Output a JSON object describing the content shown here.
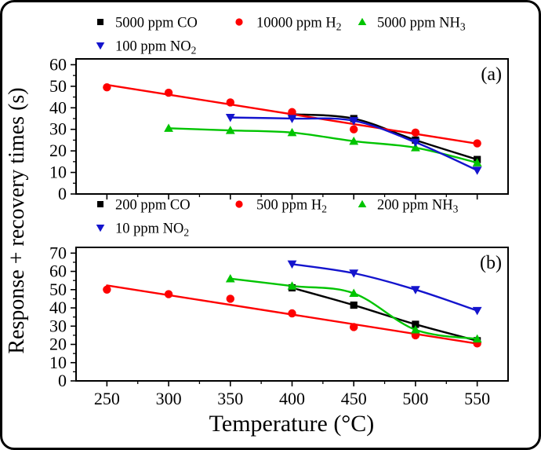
{
  "figure": {
    "xlabel": "Temperature (°C)",
    "ylabel": "Response + recovery times (s)",
    "background": "#ffffff",
    "border_color": "#000000"
  },
  "chart_data": [
    {
      "type": "line",
      "panel_label": "(a)",
      "xlabel": "Temperature (°C)",
      "ylabel": "Response + recovery times (s)",
      "xlim": [
        225,
        575
      ],
      "xticks": [
        250,
        300,
        350,
        400,
        450,
        500,
        550
      ],
      "x_minor_step": 25,
      "ylim": [
        0,
        60
      ],
      "yticks": [
        0,
        10,
        20,
        30,
        40,
        50,
        60
      ],
      "y_minor_step": 5,
      "grid": false,
      "legend_position": "top-left, two rows",
      "series": [
        {
          "name": "5000 ppm CO",
          "label": "5000 ppm CO",
          "label_sub": "",
          "marker": "square",
          "color": "#000000",
          "fit": "spline",
          "x": [
            400,
            450,
            500,
            550
          ],
          "y": [
            37,
            35,
            25,
            16
          ]
        },
        {
          "name": "10000 ppm H2",
          "label": "10000 ppm H",
          "label_sub": "2",
          "marker": "circle",
          "color": "#fe0000",
          "fit": "linear",
          "x": [
            250,
            300,
            350,
            400,
            450,
            500,
            550
          ],
          "y": [
            49.5,
            47,
            42.5,
            38,
            30,
            28.5,
            23.5
          ]
        },
        {
          "name": "5000 ppm NH3",
          "label": "5000 ppm NH",
          "label_sub": "3",
          "marker": "triangle-up",
          "color": "#00c400",
          "fit": "spline",
          "x": [
            300,
            350,
            400,
            450,
            500,
            550
          ],
          "y": [
            30.5,
            29.5,
            28.5,
            24.5,
            21.5,
            14.5
          ]
        },
        {
          "name": "100 ppm NO2",
          "label": "100 ppm NO",
          "label_sub": "2",
          "marker": "triangle-down",
          "color": "#1414cd",
          "fit": "spline",
          "x": [
            350,
            400,
            450,
            500,
            550
          ],
          "y": [
            35.5,
            35,
            34,
            24,
            11
          ]
        }
      ]
    },
    {
      "type": "line",
      "panel_label": "(b)",
      "xlabel": "Temperature (°C)",
      "ylabel": "Response + recovery times (s)",
      "xlim": [
        225,
        575
      ],
      "xticks": [
        250,
        300,
        350,
        400,
        450,
        500,
        550
      ],
      "x_minor_step": 25,
      "ylim": [
        0,
        70
      ],
      "yticks": [
        0,
        10,
        20,
        30,
        40,
        50,
        60,
        70
      ],
      "y_minor_step": 5,
      "grid": false,
      "legend_position": "top-left, two rows",
      "series": [
        {
          "name": "200 ppm CO",
          "label": "200 ppm CO",
          "label_sub": "",
          "marker": "square",
          "color": "#000000",
          "fit": "spline",
          "x": [
            400,
            450,
            500,
            550
          ],
          "y": [
            51,
            41.5,
            31,
            22
          ]
        },
        {
          "name": "500 ppm H2",
          "label": "500 ppm H",
          "label_sub": "2",
          "marker": "circle",
          "color": "#fe0000",
          "fit": "linear",
          "x": [
            250,
            300,
            350,
            400,
            450,
            500,
            550
          ],
          "y": [
            50,
            47.5,
            45,
            37,
            29.5,
            25,
            20.5
          ]
        },
        {
          "name": "200 ppm NH3",
          "label": "200 ppm NH",
          "label_sub": "3",
          "marker": "triangle-up",
          "color": "#00c400",
          "fit": "spline",
          "x": [
            350,
            400,
            450,
            500,
            550
          ],
          "y": [
            56,
            52,
            48,
            28,
            23
          ]
        },
        {
          "name": "10 ppm NO2",
          "label": "10 ppm NO",
          "label_sub": "2",
          "marker": "triangle-down",
          "color": "#1414cd",
          "fit": "spline",
          "x": [
            400,
            450,
            500,
            550
          ],
          "y": [
            64,
            59,
            50,
            38.5
          ]
        }
      ]
    }
  ]
}
